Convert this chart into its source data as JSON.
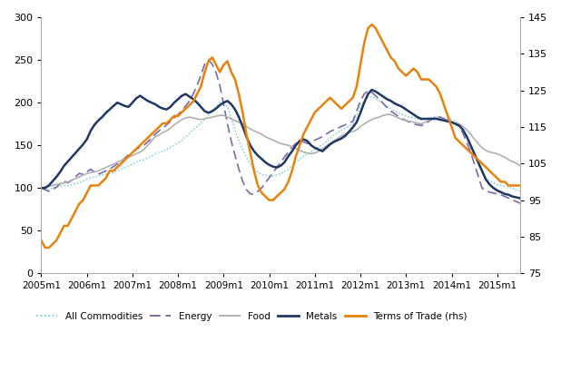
{
  "ylim_left": [
    0,
    300
  ],
  "ylim_right": [
    75,
    145
  ],
  "yticks_left": [
    0,
    50,
    100,
    150,
    200,
    250,
    300
  ],
  "yticks_right": [
    75,
    85,
    95,
    105,
    115,
    125,
    135,
    145
  ],
  "xtick_labels": [
    "2005m1",
    "2006m1",
    "2007m1",
    "2008m1",
    "2009m1",
    "2010m1",
    "2011m1",
    "2012m1",
    "2013m1",
    "2014m1",
    "2015m1"
  ],
  "xtick_positions": [
    0,
    12,
    24,
    36,
    48,
    60,
    72,
    84,
    96,
    108,
    120
  ],
  "n_months": 127,
  "all_commodities": [
    100,
    99,
    98,
    100,
    101,
    102,
    103,
    103,
    104,
    105,
    106,
    108,
    110,
    112,
    113,
    114,
    115,
    116,
    117,
    118,
    120,
    122,
    124,
    126,
    128,
    130,
    132,
    133,
    135,
    137,
    140,
    142,
    143,
    145,
    148,
    150,
    153,
    156,
    160,
    164,
    168,
    172,
    176,
    180,
    185,
    190,
    195,
    200,
    202,
    195,
    182,
    168,
    155,
    145,
    136,
    128,
    122,
    118,
    116,
    115,
    114,
    114,
    115,
    117,
    119,
    122,
    126,
    130,
    134,
    137,
    140,
    142,
    145,
    148,
    151,
    154,
    158,
    162,
    165,
    168,
    170,
    172,
    175,
    185,
    195,
    202,
    207,
    207,
    205,
    202,
    199,
    196,
    193,
    190,
    188,
    186,
    184,
    183,
    182,
    181,
    180,
    181,
    182,
    183,
    184,
    183,
    182,
    181,
    180,
    178,
    175,
    168,
    158,
    148,
    138,
    128,
    118,
    112,
    108,
    106,
    104,
    103,
    102,
    101,
    100,
    98,
    96
  ],
  "energy": [
    100,
    98,
    96,
    98,
    101,
    105,
    108,
    106,
    109,
    113,
    117,
    116,
    119,
    122,
    118,
    116,
    118,
    120,
    122,
    125,
    128,
    131,
    135,
    139,
    142,
    145,
    148,
    150,
    154,
    158,
    163,
    167,
    170,
    174,
    178,
    182,
    186,
    191,
    196,
    202,
    210,
    220,
    232,
    245,
    250,
    245,
    235,
    220,
    198,
    175,
    155,
    138,
    122,
    108,
    98,
    93,
    93,
    96,
    100,
    106,
    112,
    118,
    124,
    130,
    136,
    142,
    148,
    152,
    154,
    154,
    152,
    154,
    156,
    158,
    160,
    163,
    166,
    168,
    170,
    172,
    174,
    176,
    178,
    190,
    202,
    210,
    214,
    212,
    208,
    204,
    199,
    194,
    190,
    187,
    184,
    181,
    179,
    177,
    175,
    174,
    173,
    175,
    178,
    181,
    184,
    183,
    181,
    179,
    177,
    175,
    172,
    164,
    153,
    142,
    128,
    114,
    100,
    97,
    95,
    94,
    93,
    92,
    90,
    88,
    86,
    84,
    82
  ],
  "food": [
    100,
    101,
    102,
    103,
    104,
    105,
    106,
    107,
    109,
    111,
    113,
    115,
    117,
    118,
    119,
    120,
    122,
    124,
    126,
    128,
    130,
    132,
    134,
    136,
    138,
    140,
    142,
    145,
    150,
    155,
    160,
    162,
    165,
    167,
    170,
    174,
    177,
    180,
    182,
    183,
    182,
    181,
    180,
    181,
    182,
    183,
    184,
    185,
    185,
    183,
    181,
    179,
    177,
    175,
    172,
    169,
    167,
    165,
    163,
    160,
    158,
    156,
    154,
    152,
    151,
    150,
    148,
    146,
    144,
    142,
    141,
    140,
    141,
    143,
    146,
    149,
    152,
    155,
    158,
    161,
    163,
    165,
    166,
    168,
    172,
    175,
    178,
    180,
    182,
    183,
    185,
    186,
    186,
    184,
    182,
    180,
    179,
    178,
    177,
    176,
    175,
    177,
    179,
    181,
    182,
    181,
    180,
    178,
    177,
    176,
    175,
    172,
    168,
    163,
    157,
    152,
    147,
    144,
    142,
    141,
    140,
    138,
    136,
    133,
    131,
    129,
    126
  ],
  "metals": [
    100,
    100,
    103,
    108,
    113,
    119,
    126,
    131,
    136,
    141,
    146,
    151,
    157,
    167,
    174,
    179,
    183,
    188,
    192,
    196,
    200,
    198,
    196,
    195,
    200,
    205,
    208,
    205,
    202,
    200,
    198,
    195,
    193,
    192,
    195,
    200,
    204,
    208,
    210,
    207,
    204,
    200,
    195,
    190,
    188,
    190,
    193,
    197,
    200,
    202,
    198,
    192,
    183,
    172,
    160,
    150,
    143,
    138,
    134,
    130,
    127,
    125,
    124,
    126,
    130,
    137,
    143,
    150,
    155,
    157,
    155,
    150,
    147,
    145,
    143,
    147,
    151,
    154,
    156,
    158,
    161,
    166,
    171,
    177,
    188,
    200,
    210,
    215,
    213,
    210,
    207,
    204,
    202,
    199,
    197,
    195,
    192,
    189,
    186,
    183,
    181,
    181,
    181,
    181,
    181,
    180,
    179,
    178,
    177,
    175,
    173,
    168,
    160,
    150,
    140,
    130,
    120,
    110,
    104,
    100,
    97,
    95,
    93,
    92,
    90,
    89,
    88
  ],
  "terms_of_trade": [
    84,
    82,
    82,
    83,
    84,
    86,
    88,
    88,
    90,
    92,
    94,
    95,
    97,
    99,
    99,
    99,
    100,
    101,
    103,
    103,
    104,
    105,
    106,
    107,
    108,
    109,
    110,
    111,
    112,
    113,
    114,
    115,
    116,
    116,
    117,
    118,
    118,
    119,
    120,
    121,
    122,
    124,
    126,
    130,
    133,
    134,
    132,
    130,
    132,
    133,
    130,
    128,
    124,
    119,
    113,
    108,
    103,
    99,
    97,
    96,
    95,
    95,
    96,
    97,
    98,
    100,
    103,
    107,
    110,
    113,
    115,
    117,
    119,
    120,
    121,
    122,
    123,
    122,
    121,
    120,
    121,
    122,
    123,
    126,
    132,
    138,
    142,
    143,
    142,
    140,
    138,
    136,
    134,
    133,
    131,
    130,
    129,
    130,
    131,
    130,
    128,
    128,
    128,
    127,
    126,
    124,
    121,
    118,
    115,
    112,
    111,
    110,
    109,
    108,
    107,
    106,
    105,
    104,
    103,
    102,
    101,
    100,
    100,
    99,
    99,
    99,
    99
  ],
  "colors": {
    "all_commodities": "#5bc8d2",
    "energy": "#7b68aa",
    "food": "#b0b0b0",
    "metals": "#1f3864",
    "terms_of_trade": "#e8820c"
  },
  "linewidths": {
    "all_commodities": 1.0,
    "energy": 1.2,
    "food": 1.2,
    "metals": 1.8,
    "terms_of_trade": 1.8
  },
  "legend_labels": [
    "All Commodities",
    "Energy",
    "Food",
    "Metals",
    "Terms of Trade (rhs)"
  ],
  "background_color": "#ffffff",
  "spine_color": "#aaaaaa"
}
